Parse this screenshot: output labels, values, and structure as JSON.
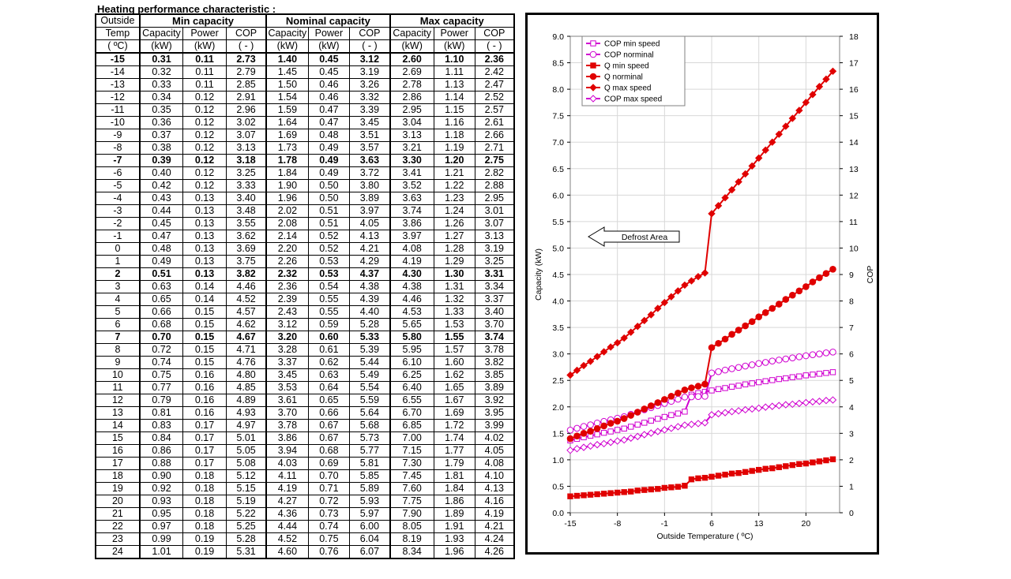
{
  "title": "Heating performance  characteristic  :",
  "table": {
    "header_row1": {
      "outside": "Outside",
      "groups": [
        "Min capacity",
        "Nominal capacity",
        "Max capacity"
      ]
    },
    "header_row2": {
      "temp": "Temp",
      "cols": [
        "Capacity",
        "Power",
        "COP",
        "Capacity",
        "Power",
        "COP",
        "Capacity",
        "Power",
        "COP"
      ]
    },
    "header_row3": {
      "temp_unit": "( ºC)",
      "units": [
        "(kW)",
        "(kW)",
        "( - )",
        "(kW)",
        "(kW)",
        "( - )",
        "(kW)",
        "(kW)",
        "( - )"
      ]
    },
    "rows": [
      {
        "t": "-15",
        "v": [
          "0.31",
          "0.11",
          "2.73",
          "1.40",
          "0.45",
          "3.12",
          "2.60",
          "1.10",
          "2.36"
        ],
        "bold": true
      },
      {
        "t": "-14",
        "v": [
          "0.32",
          "0.11",
          "2.79",
          "1.45",
          "0.45",
          "3.19",
          "2.69",
          "1.11",
          "2.42"
        ]
      },
      {
        "t": "-13",
        "v": [
          "0.33",
          "0.11",
          "2.85",
          "1.50",
          "0.46",
          "3.26",
          "2.78",
          "1.13",
          "2.47"
        ]
      },
      {
        "t": "-12",
        "v": [
          "0.34",
          "0.12",
          "2.91",
          "1.54",
          "0.46",
          "3.32",
          "2.86",
          "1.14",
          "2.52"
        ]
      },
      {
        "t": "-11",
        "v": [
          "0.35",
          "0.12",
          "2.96",
          "1.59",
          "0.47",
          "3.39",
          "2.95",
          "1.15",
          "2.57"
        ]
      },
      {
        "t": "-10",
        "v": [
          "0.36",
          "0.12",
          "3.02",
          "1.64",
          "0.47",
          "3.45",
          "3.04",
          "1.16",
          "2.61"
        ]
      },
      {
        "t": "-9",
        "v": [
          "0.37",
          "0.12",
          "3.07",
          "1.69",
          "0.48",
          "3.51",
          "3.13",
          "1.18",
          "2.66"
        ]
      },
      {
        "t": "-8",
        "v": [
          "0.38",
          "0.12",
          "3.13",
          "1.73",
          "0.49",
          "3.57",
          "3.21",
          "1.19",
          "2.71"
        ]
      },
      {
        "t": "-7",
        "v": [
          "0.39",
          "0.12",
          "3.18",
          "1.78",
          "0.49",
          "3.63",
          "3.30",
          "1.20",
          "2.75"
        ],
        "bold": true
      },
      {
        "t": "-6",
        "v": [
          "0.40",
          "0.12",
          "3.25",
          "1.84",
          "0.49",
          "3.72",
          "3.41",
          "1.21",
          "2.82"
        ]
      },
      {
        "t": "-5",
        "v": [
          "0.42",
          "0.12",
          "3.33",
          "1.90",
          "0.50",
          "3.80",
          "3.52",
          "1.22",
          "2.88"
        ]
      },
      {
        "t": "-4",
        "v": [
          "0.43",
          "0.13",
          "3.40",
          "1.96",
          "0.50",
          "3.89",
          "3.63",
          "1.23",
          "2.95"
        ]
      },
      {
        "t": "-3",
        "v": [
          "0.44",
          "0.13",
          "3.48",
          "2.02",
          "0.51",
          "3.97",
          "3.74",
          "1.24",
          "3.01"
        ]
      },
      {
        "t": "-2",
        "v": [
          "0.45",
          "0.13",
          "3.55",
          "2.08",
          "0.51",
          "4.05",
          "3.86",
          "1.26",
          "3.07"
        ]
      },
      {
        "t": "-1",
        "v": [
          "0.47",
          "0.13",
          "3.62",
          "2.14",
          "0.52",
          "4.13",
          "3.97",
          "1.27",
          "3.13"
        ]
      },
      {
        "t": "0",
        "v": [
          "0.48",
          "0.13",
          "3.69",
          "2.20",
          "0.52",
          "4.21",
          "4.08",
          "1.28",
          "3.19"
        ]
      },
      {
        "t": "1",
        "v": [
          "0.49",
          "0.13",
          "3.75",
          "2.26",
          "0.53",
          "4.29",
          "4.19",
          "1.29",
          "3.25"
        ]
      },
      {
        "t": "2",
        "v": [
          "0.51",
          "0.13",
          "3.82",
          "2.32",
          "0.53",
          "4.37",
          "4.30",
          "1.30",
          "3.31"
        ],
        "bold": true
      },
      {
        "t": "3",
        "v": [
          "0.63",
          "0.14",
          "4.46",
          "2.36",
          "0.54",
          "4.38",
          "4.38",
          "1.31",
          "3.34"
        ]
      },
      {
        "t": "4",
        "v": [
          "0.65",
          "0.14",
          "4.52",
          "2.39",
          "0.55",
          "4.39",
          "4.46",
          "1.32",
          "3.37"
        ]
      },
      {
        "t": "5",
        "v": [
          "0.66",
          "0.15",
          "4.57",
          "2.43",
          "0.55",
          "4.40",
          "4.53",
          "1.33",
          "3.40"
        ]
      },
      {
        "t": "6",
        "v": [
          "0.68",
          "0.15",
          "4.62",
          "3.12",
          "0.59",
          "5.28",
          "5.65",
          "1.53",
          "3.70"
        ]
      },
      {
        "t": "7",
        "v": [
          "0.70",
          "0.15",
          "4.67",
          "3.20",
          "0.60",
          "5.33",
          "5.80",
          "1.55",
          "3.74"
        ],
        "bold": true
      },
      {
        "t": "8",
        "v": [
          "0.72",
          "0.15",
          "4.71",
          "3.28",
          "0.61",
          "5.39",
          "5.95",
          "1.57",
          "3.78"
        ]
      },
      {
        "t": "9",
        "v": [
          "0.74",
          "0.15",
          "4.76",
          "3.37",
          "0.62",
          "5.44",
          "6.10",
          "1.60",
          "3.82"
        ]
      },
      {
        "t": "10",
        "v": [
          "0.75",
          "0.16",
          "4.80",
          "3.45",
          "0.63",
          "5.49",
          "6.25",
          "1.62",
          "3.85"
        ]
      },
      {
        "t": "11",
        "v": [
          "0.77",
          "0.16",
          "4.85",
          "3.53",
          "0.64",
          "5.54",
          "6.40",
          "1.65",
          "3.89"
        ]
      },
      {
        "t": "12",
        "v": [
          "0.79",
          "0.16",
          "4.89",
          "3.61",
          "0.65",
          "5.59",
          "6.55",
          "1.67",
          "3.92"
        ]
      },
      {
        "t": "13",
        "v": [
          "0.81",
          "0.16",
          "4.93",
          "3.70",
          "0.66",
          "5.64",
          "6.70",
          "1.69",
          "3.95"
        ]
      },
      {
        "t": "14",
        "v": [
          "0.83",
          "0.17",
          "4.97",
          "3.78",
          "0.67",
          "5.68",
          "6.85",
          "1.72",
          "3.99"
        ]
      },
      {
        "t": "15",
        "v": [
          "0.84",
          "0.17",
          "5.01",
          "3.86",
          "0.67",
          "5.73",
          "7.00",
          "1.74",
          "4.02"
        ]
      },
      {
        "t": "16",
        "v": [
          "0.86",
          "0.17",
          "5.05",
          "3.94",
          "0.68",
          "5.77",
          "7.15",
          "1.77",
          "4.05"
        ]
      },
      {
        "t": "17",
        "v": [
          "0.88",
          "0.17",
          "5.08",
          "4.03",
          "0.69",
          "5.81",
          "7.30",
          "1.79",
          "4.08"
        ]
      },
      {
        "t": "18",
        "v": [
          "0.90",
          "0.18",
          "5.12",
          "4.11",
          "0.70",
          "5.85",
          "7.45",
          "1.81",
          "4.10"
        ]
      },
      {
        "t": "19",
        "v": [
          "0.92",
          "0.18",
          "5.15",
          "4.19",
          "0.71",
          "5.89",
          "7.60",
          "1.84",
          "4.13"
        ]
      },
      {
        "t": "20",
        "v": [
          "0.93",
          "0.18",
          "5.19",
          "4.27",
          "0.72",
          "5.93",
          "7.75",
          "1.86",
          "4.16"
        ]
      },
      {
        "t": "21",
        "v": [
          "0.95",
          "0.18",
          "5.22",
          "4.36",
          "0.73",
          "5.97",
          "7.90",
          "1.89",
          "4.19"
        ]
      },
      {
        "t": "22",
        "v": [
          "0.97",
          "0.18",
          "5.25",
          "4.44",
          "0.74",
          "6.00",
          "8.05",
          "1.91",
          "4.21"
        ]
      },
      {
        "t": "23",
        "v": [
          "0.99",
          "0.19",
          "5.28",
          "4.52",
          "0.75",
          "6.04",
          "8.19",
          "1.93",
          "4.24"
        ]
      },
      {
        "t": "24",
        "v": [
          "1.01",
          "0.19",
          "5.31",
          "4.60",
          "0.76",
          "6.07",
          "8.34",
          "1.96",
          "4.26"
        ]
      }
    ]
  },
  "chart_data": {
    "type": "line",
    "xlabel": "Outside Temperature ( ºC)",
    "ylabel": "Capacity (kW)",
    "y2label": "COP",
    "xlim": [
      -15,
      25
    ],
    "ylim": [
      0,
      9
    ],
    "y2lim": [
      0,
      18
    ],
    "x_ticks": [
      "-15",
      "-8",
      "-1",
      "6",
      "13",
      "20"
    ],
    "y_ticks": [
      "0.0",
      "0.5",
      "1.0",
      "1.5",
      "2.0",
      "2.5",
      "3.0",
      "3.5",
      "4.0",
      "4.5",
      "5.0",
      "5.5",
      "6.0",
      "6.5",
      "7.0",
      "7.5",
      "8.0",
      "8.5",
      "9.0"
    ],
    "y2_ticks": [
      "0",
      "1",
      "2",
      "3",
      "4",
      "5",
      "6",
      "7",
      "8",
      "9",
      "10",
      "11",
      "12",
      "13",
      "14",
      "15",
      "16",
      "17",
      "18"
    ],
    "grid": true,
    "legend_position": "top-left",
    "annotation": "Defrost Area",
    "x": [
      -15,
      -14,
      -13,
      -12,
      -11,
      -10,
      -9,
      -8,
      -7,
      -6,
      -5,
      -4,
      -3,
      -2,
      -1,
      0,
      1,
      2,
      3,
      4,
      5,
      6,
      7,
      8,
      9,
      10,
      11,
      12,
      13,
      14,
      15,
      16,
      17,
      18,
      19,
      20,
      21,
      22,
      23,
      24
    ],
    "series": [
      {
        "name": "COP min speed",
        "axis": "right",
        "color": "#d000d0",
        "marker": "square-open",
        "values": [
          2.73,
          2.79,
          2.85,
          2.91,
          2.96,
          3.02,
          3.07,
          3.13,
          3.18,
          3.25,
          3.33,
          3.4,
          3.48,
          3.55,
          3.62,
          3.69,
          3.75,
          3.82,
          4.46,
          4.52,
          4.57,
          4.62,
          4.67,
          4.71,
          4.76,
          4.8,
          4.85,
          4.89,
          4.93,
          4.97,
          5.01,
          5.05,
          5.08,
          5.12,
          5.15,
          5.19,
          5.22,
          5.25,
          5.28,
          5.31
        ]
      },
      {
        "name": "COP norminal",
        "axis": "right",
        "color": "#d000d0",
        "marker": "circle-open",
        "values": [
          3.12,
          3.19,
          3.26,
          3.32,
          3.39,
          3.45,
          3.51,
          3.57,
          3.63,
          3.72,
          3.8,
          3.89,
          3.97,
          4.05,
          4.13,
          4.21,
          4.29,
          4.37,
          4.38,
          4.39,
          4.4,
          5.28,
          5.33,
          5.39,
          5.44,
          5.49,
          5.54,
          5.59,
          5.64,
          5.68,
          5.73,
          5.77,
          5.81,
          5.85,
          5.89,
          5.93,
          5.97,
          6.0,
          6.04,
          6.07
        ]
      },
      {
        "name": "Q min speed",
        "axis": "left",
        "color": "#e00000",
        "marker": "square",
        "values": [
          0.31,
          0.32,
          0.33,
          0.34,
          0.35,
          0.36,
          0.37,
          0.38,
          0.39,
          0.4,
          0.42,
          0.43,
          0.44,
          0.45,
          0.47,
          0.48,
          0.49,
          0.51,
          0.63,
          0.65,
          0.66,
          0.68,
          0.7,
          0.72,
          0.74,
          0.75,
          0.77,
          0.79,
          0.81,
          0.83,
          0.84,
          0.86,
          0.88,
          0.9,
          0.92,
          0.93,
          0.95,
          0.97,
          0.99,
          1.01
        ]
      },
      {
        "name": "Q norminal",
        "axis": "left",
        "color": "#e00000",
        "marker": "circle",
        "values": [
          1.4,
          1.45,
          1.5,
          1.54,
          1.59,
          1.64,
          1.69,
          1.73,
          1.78,
          1.84,
          1.9,
          1.96,
          2.02,
          2.08,
          2.14,
          2.2,
          2.26,
          2.32,
          2.36,
          2.39,
          2.43,
          3.12,
          3.2,
          3.28,
          3.37,
          3.45,
          3.53,
          3.61,
          3.7,
          3.78,
          3.86,
          3.94,
          4.03,
          4.11,
          4.19,
          4.27,
          4.36,
          4.44,
          4.52,
          4.6
        ]
      },
      {
        "name": "Q max speed",
        "axis": "left",
        "color": "#e00000",
        "marker": "diamond",
        "values": [
          2.6,
          2.69,
          2.78,
          2.86,
          2.95,
          3.04,
          3.13,
          3.21,
          3.3,
          3.41,
          3.52,
          3.63,
          3.74,
          3.86,
          3.97,
          4.08,
          4.19,
          4.3,
          4.38,
          4.46,
          4.53,
          5.65,
          5.8,
          5.95,
          6.1,
          6.25,
          6.4,
          6.55,
          6.7,
          6.85,
          7.0,
          7.15,
          7.3,
          7.45,
          7.6,
          7.75,
          7.9,
          8.05,
          8.19,
          8.34
        ]
      },
      {
        "name": "COP max speed",
        "axis": "right",
        "color": "#d000d0",
        "marker": "diamond-open",
        "values": [
          2.36,
          2.42,
          2.47,
          2.52,
          2.57,
          2.61,
          2.66,
          2.71,
          2.75,
          2.82,
          2.88,
          2.95,
          3.01,
          3.07,
          3.13,
          3.19,
          3.25,
          3.31,
          3.34,
          3.37,
          3.4,
          3.7,
          3.74,
          3.78,
          3.82,
          3.85,
          3.89,
          3.92,
          3.95,
          3.99,
          4.02,
          4.05,
          4.08,
          4.1,
          4.13,
          4.16,
          4.19,
          4.21,
          4.24,
          4.26
        ]
      }
    ]
  }
}
